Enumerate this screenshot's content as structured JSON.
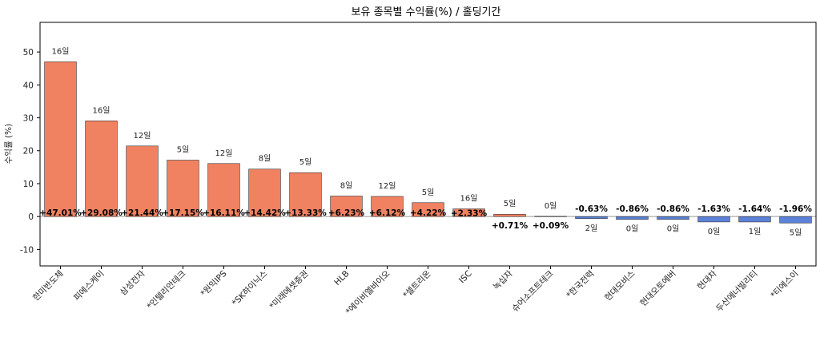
{
  "chart_data": {
    "type": "bar",
    "title": "보유 종목별 수익률(%) / 홀딩기간",
    "xlabel": "",
    "ylabel": "수익률 (%)",
    "ylim": [
      -15,
      59
    ],
    "yticks": [
      -10,
      0,
      10,
      20,
      30,
      40,
      50
    ],
    "grid": false,
    "colors": {
      "positive": "#f08262",
      "negative": "#5b82d8",
      "zero_line": "#999999"
    },
    "categories": [
      "한미반도체",
      "피에스케이",
      "삼성전자",
      "*인텔리안테크",
      "*원익IPS",
      "*SK하이닉스",
      "*미래에셋증권",
      "HLB",
      "*에이비엘바이오",
      "*셀트리온",
      "ISC",
      "녹십자",
      "슈어소프트테크",
      "*한국전력",
      "현대모비스",
      "현대오토에버",
      "현대차",
      "두산에너빌리티",
      "*티에스이"
    ],
    "values": [
      47.01,
      29.08,
      21.44,
      17.15,
      16.11,
      14.42,
      13.33,
      6.23,
      6.12,
      4.22,
      2.33,
      0.71,
      0.09,
      -0.63,
      -0.86,
      -0.86,
      -1.63,
      -1.64,
      -1.96
    ],
    "value_labels": [
      "+47.01%",
      "+29.08%",
      "+21.44%",
      "+17.15%",
      "+16.11%",
      "+14.42%",
      "+13.33%",
      "+6.23%",
      "+6.12%",
      "+4.22%",
      "+2.33%",
      "+0.71%",
      "+0.09%",
      "-0.63%",
      "-0.86%",
      "-0.86%",
      "-1.63%",
      "-1.64%",
      "-1.96%"
    ],
    "holding_labels": [
      "16일",
      "16일",
      "12일",
      "5일",
      "12일",
      "8일",
      "5일",
      "8일",
      "12일",
      "5일",
      "16일",
      "5일",
      "0일",
      "2일",
      "0일",
      "0일",
      "0일",
      "1일",
      "5일"
    ]
  }
}
